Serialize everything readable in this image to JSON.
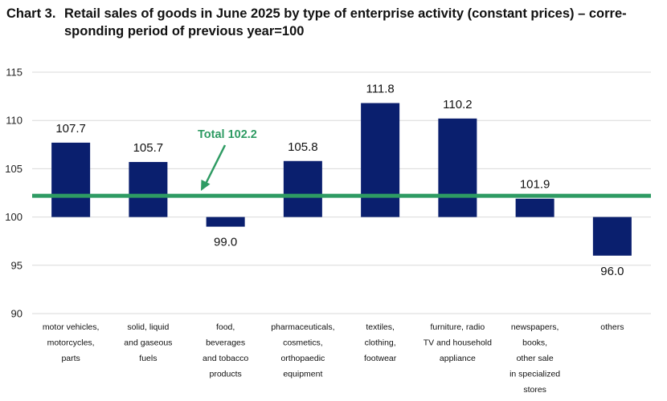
{
  "title": {
    "prefix": "Chart 3.",
    "line1": "Retail sales of goods in June 2025 by type of enterprise activity (constant prices) – corre-",
    "line2": "sponding period of previous year=100"
  },
  "chart_data": {
    "type": "bar",
    "title": "Chart 3. Retail sales of goods in June 2025 by type of enterprise activity (constant prices) – corresponding period of previous year=100",
    "baseline": 100,
    "ylim": [
      90,
      115
    ],
    "yticks": [
      90,
      95,
      100,
      105,
      110,
      115
    ],
    "grid": true,
    "categories": [
      [
        "motor vehicles,",
        "motorcycles,",
        "parts"
      ],
      [
        "solid, liquid",
        "and gaseous",
        "fuels"
      ],
      [
        "food,",
        "beverages",
        "and tobacco",
        "products"
      ],
      [
        "pharmaceuticals,",
        "cosmetics,",
        "orthopaedic",
        "equipment"
      ],
      [
        "textiles,",
        "clothing,",
        "footwear"
      ],
      [
        "furniture,  radio",
        "TV and household",
        "appliance"
      ],
      [
        "newspapers,",
        "books,",
        "other sale",
        "in specialized",
        "stores"
      ],
      [
        "others"
      ]
    ],
    "values": [
      107.7,
      105.7,
      99.0,
      105.8,
      111.8,
      110.2,
      101.9,
      96.0
    ],
    "value_labels": [
      "107.7",
      "105.7",
      "99.0",
      "105.8",
      "111.8",
      "110.2",
      "101.9",
      "96.0"
    ],
    "reference_line": {
      "value": 102.2,
      "label": "Total 102.2"
    },
    "colors": {
      "bar": "#0a1f6e",
      "total": "#2e9b63",
      "grid": "#d9d9d9"
    }
  }
}
